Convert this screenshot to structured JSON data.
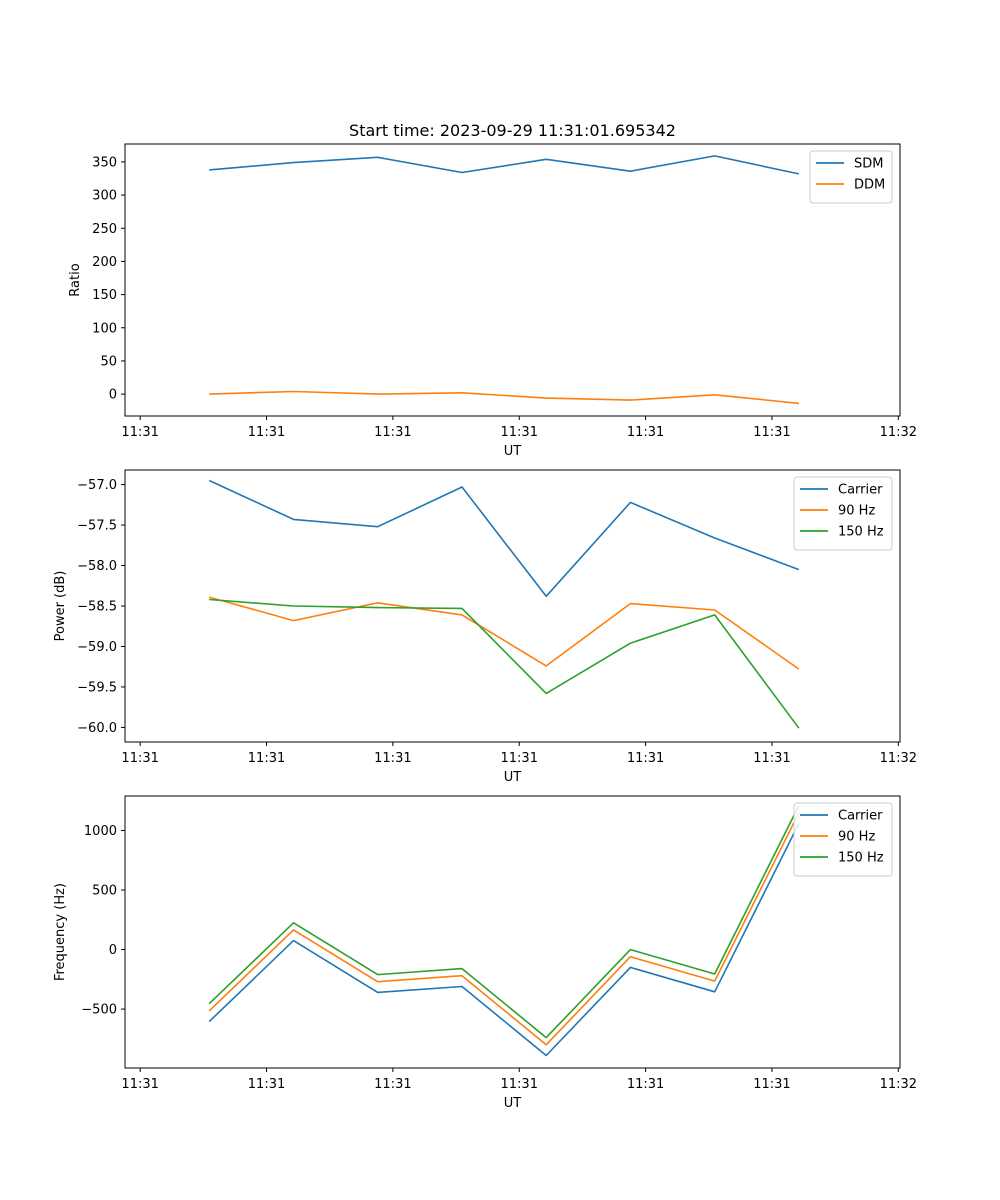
{
  "chart_data": [
    {
      "type": "line",
      "title": "Start time: 2023-09-29 11:31:01.695342",
      "xlabel": "UT",
      "ylabel": "Ratio",
      "xlim": [
        0,
        9.2
      ],
      "ylim": [
        -33,
        377
      ],
      "x": [
        1,
        2,
        3,
        4,
        5,
        6,
        7,
        8
      ],
      "xticks": [
        0.18,
        1.68,
        3.18,
        4.68,
        6.18,
        7.68,
        9.18
      ],
      "xtick_labels": [
        "11:31",
        "11:31",
        "11:31",
        "11:31",
        "11:31",
        "11:31",
        "11:32"
      ],
      "yticks": [
        0,
        50,
        100,
        150,
        200,
        250,
        300,
        350
      ],
      "ytick_labels": [
        "0",
        "50",
        "100",
        "150",
        "200",
        "250",
        "300",
        "350"
      ],
      "legend_position": "top-right",
      "series": [
        {
          "name": "SDM",
          "color": "#1f77b4",
          "values": [
            338,
            349,
            357,
            334,
            354,
            336,
            359,
            332
          ]
        },
        {
          "name": "DDM",
          "color": "#ff7f0e",
          "values": [
            0,
            4,
            0,
            2,
            -6,
            -9,
            -1,
            -14
          ]
        }
      ]
    },
    {
      "type": "line",
      "title": "",
      "xlabel": "UT",
      "ylabel": "Power (dB)",
      "xlim": [
        0,
        9.2
      ],
      "ylim": [
        -60.18,
        -56.82
      ],
      "x": [
        1,
        2,
        3,
        4,
        5,
        6,
        7,
        8
      ],
      "xticks": [
        0.18,
        1.68,
        3.18,
        4.68,
        6.18,
        7.68,
        9.18
      ],
      "xtick_labels": [
        "11:31",
        "11:31",
        "11:31",
        "11:31",
        "11:31",
        "11:31",
        "11:32"
      ],
      "yticks": [
        -60.0,
        -59.5,
        -59.0,
        -58.5,
        -58.0,
        -57.5,
        -57.0
      ],
      "ytick_labels": [
        "−60.0",
        "−59.5",
        "−59.0",
        "−58.5",
        "−58.0",
        "−57.5",
        "−57.0"
      ],
      "legend_position": "top-right",
      "series": [
        {
          "name": "Carrier",
          "color": "#1f77b4",
          "values": [
            -56.95,
            -57.43,
            -57.52,
            -57.03,
            -58.38,
            -57.22,
            -57.66,
            -58.05
          ]
        },
        {
          "name": "90 Hz",
          "color": "#ff7f0e",
          "values": [
            -58.39,
            -58.68,
            -58.46,
            -58.61,
            -59.24,
            -58.47,
            -58.55,
            -59.28
          ]
        },
        {
          "name": "150 Hz",
          "color": "#2ca02c",
          "values": [
            -58.42,
            -58.5,
            -58.52,
            -58.53,
            -59.58,
            -58.96,
            -58.61,
            -60.01
          ]
        }
      ]
    },
    {
      "type": "line",
      "title": "",
      "xlabel": "UT",
      "ylabel": "Frequency (Hz)",
      "xlim": [
        0,
        9.2
      ],
      "ylim": [
        -995,
        1290
      ],
      "x": [
        1,
        2,
        3,
        4,
        5,
        6,
        7,
        8
      ],
      "xticks": [
        0.18,
        1.68,
        3.18,
        4.68,
        6.18,
        7.68,
        9.18
      ],
      "xtick_labels": [
        "11:31",
        "11:31",
        "11:31",
        "11:31",
        "11:31",
        "11:31",
        "11:32"
      ],
      "yticks": [
        -500,
        0,
        500,
        1000
      ],
      "ytick_labels": [
        "−500",
        "0",
        "500",
        "1000"
      ],
      "legend_position": "top-right",
      "series": [
        {
          "name": "Carrier",
          "color": "#1f77b4",
          "values": [
            -605,
            75,
            -360,
            -310,
            -890,
            -150,
            -355,
            1060
          ]
        },
        {
          "name": "90 Hz",
          "color": "#ff7f0e",
          "values": [
            -515,
            165,
            -270,
            -220,
            -800,
            -60,
            -265,
            1150
          ]
        },
        {
          "name": "150 Hz",
          "color": "#2ca02c",
          "values": [
            -455,
            225,
            -210,
            -160,
            -740,
            0,
            -205,
            1210
          ]
        }
      ]
    }
  ]
}
